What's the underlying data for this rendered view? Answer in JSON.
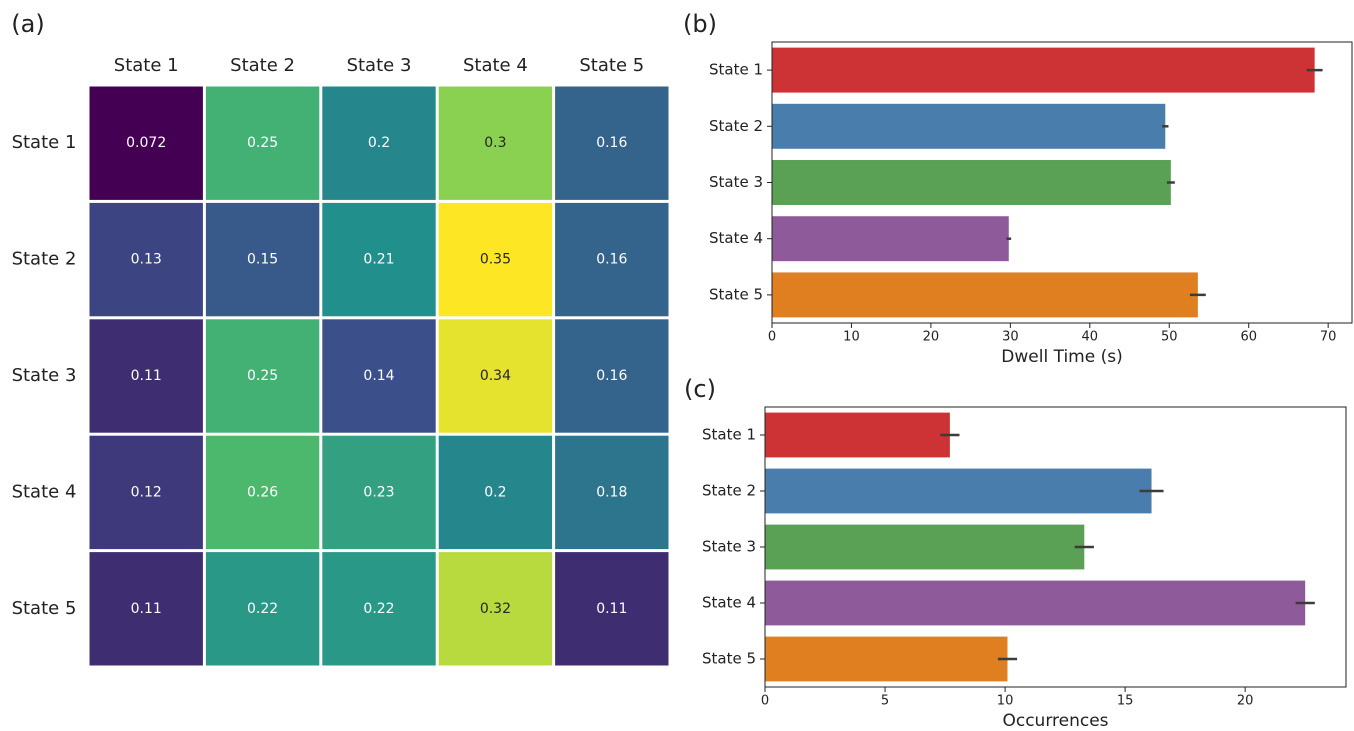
{
  "chart_data": [
    {
      "type": "heatmap",
      "panel_label": "(a)",
      "cmap": "viridis",
      "x_categories": [
        "State 1",
        "State 2",
        "State 3",
        "State 4",
        "State 5"
      ],
      "y_categories": [
        "State 1",
        "State 2",
        "State 3",
        "State 4",
        "State 5"
      ],
      "values": [
        [
          0.072,
          0.25,
          0.2,
          0.3,
          0.16
        ],
        [
          0.13,
          0.15,
          0.21,
          0.35,
          0.16
        ],
        [
          0.11,
          0.25,
          0.14,
          0.34,
          0.16
        ],
        [
          0.12,
          0.26,
          0.23,
          0.2,
          0.18
        ],
        [
          0.11,
          0.22,
          0.22,
          0.32,
          0.11
        ]
      ]
    },
    {
      "type": "hbar",
      "panel_label": "(b)",
      "xlabel": "Dwell Time (s)",
      "categories": [
        "State 1",
        "State 2",
        "State 3",
        "State 4",
        "State 5"
      ],
      "values": [
        68.3,
        49.5,
        50.2,
        29.8,
        53.6
      ],
      "errors": [
        1.0,
        0.4,
        0.5,
        0.3,
        1.0
      ],
      "colors": [
        "#cd3235",
        "#497dab",
        "#5aa155",
        "#8e5a9a",
        "#df7f20"
      ],
      "xlim": [
        0,
        73
      ],
      "xticks": [
        0,
        10,
        20,
        30,
        40,
        50,
        60,
        70
      ]
    },
    {
      "type": "hbar",
      "panel_label": "(c)",
      "xlabel": "Occurrences",
      "categories": [
        "State 1",
        "State 2",
        "State 3",
        "State 4",
        "State 5"
      ],
      "values": [
        7.7,
        16.1,
        13.3,
        22.5,
        10.1
      ],
      "errors": [
        0.4,
        0.5,
        0.4,
        0.4,
        0.4
      ],
      "colors": [
        "#cd3235",
        "#497dab",
        "#5aa155",
        "#8e5a9a",
        "#df7f20"
      ],
      "xlim": [
        0,
        24.2
      ],
      "xticks": [
        0,
        5,
        10,
        15,
        20
      ]
    }
  ]
}
